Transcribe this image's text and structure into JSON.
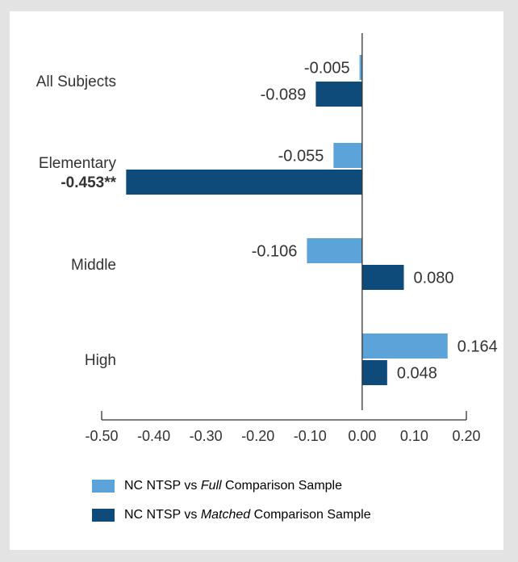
{
  "chart_data": {
    "type": "bar",
    "orientation": "horizontal",
    "categories": [
      "All Subjects",
      "Elementary",
      "Middle",
      "High"
    ],
    "category_annotations": [
      "",
      "-0.453**",
      "",
      ""
    ],
    "series": [
      {
        "name": "NC NTSP vs Full Comparison Sample",
        "legend_parts": [
          "NC NTSP vs ",
          "Full",
          " Comparison Sample"
        ],
        "color": "#5ba3d9",
        "values": [
          -0.005,
          -0.055,
          -0.106,
          0.164
        ],
        "labels": [
          "-0.005",
          "-0.055",
          "-0.106",
          "0.164"
        ]
      },
      {
        "name": "NC NTSP vs Matched Comparison Sample",
        "legend_parts": [
          "NC NTSP vs ",
          "Matched",
          " Comparison Sample"
        ],
        "color": "#0e4a7a",
        "values": [
          -0.089,
          -0.453,
          0.08,
          0.048
        ],
        "labels": [
          "-0.089",
          "",
          "0.080",
          "0.048"
        ]
      }
    ],
    "xlim": [
      -0.5,
      0.2
    ],
    "xticks": [
      "-0.50",
      "-0.40",
      "-0.30",
      "-0.20",
      "-0.10",
      "0.00",
      "0.10",
      "0.20"
    ],
    "xtick_values": [
      -0.5,
      -0.4,
      -0.3,
      -0.2,
      -0.1,
      0.0,
      0.1,
      0.2
    ],
    "title": "",
    "xlabel": "",
    "ylabel": "",
    "grid": false,
    "legend_position": "bottom"
  }
}
